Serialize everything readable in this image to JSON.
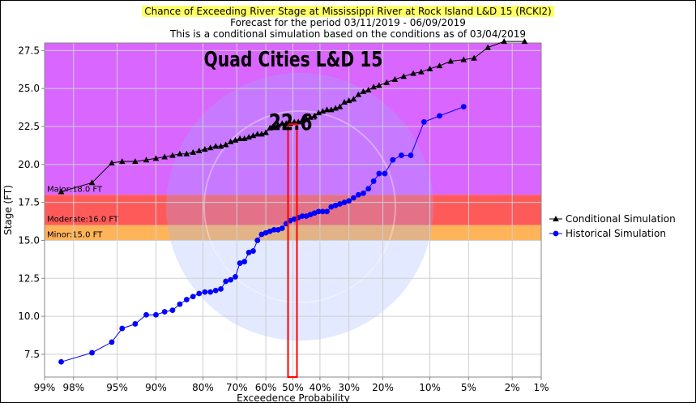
{
  "chart_data": {
    "type": "line",
    "title": "Chance of Exceeding River Stage at Mississippi River at Rock Island L&D 15 (RCKI2)",
    "subtitle": [
      "Forecast for the period 03/11/2019 - 06/09/2019",
      "This is a conditional simulation based on the conditions as of 03/04/2019"
    ],
    "xlabel": "Exceedence Probability",
    "ylabel": "Stage (FT)",
    "ylim": [
      6.0,
      28.0
    ],
    "x_tick_labels": [
      "99%",
      "98%",
      "95%",
      "90%",
      "80%",
      "70%",
      "60%",
      "50%",
      "40%",
      "30%",
      "20%",
      "10%",
      "5%",
      "2%",
      "1%"
    ],
    "y_ticks": [
      "7.5",
      "10.0",
      "12.5",
      "15.0",
      "17.5",
      "20.0",
      "22.5",
      "25.0",
      "27.5"
    ],
    "bands": [
      {
        "name": "Major",
        "label": "Major:18.0 FT",
        "from": 18.0,
        "to": 28.0,
        "color": "#d966ff"
      },
      {
        "name": "Moderate",
        "label": "Moderate:16.0 FT",
        "from": 16.0,
        "to": 18.0,
        "color": "#ff5a5a"
      },
      {
        "name": "Minor",
        "label": "Minor:15.0 FT",
        "from": 15.0,
        "to": 16.0,
        "color": "#ffb45a"
      }
    ],
    "annotation": {
      "title": "Quad Cities L&D 15",
      "value_label": "22.6'",
      "highlight_prob": 50,
      "highlight_stage": 22.6
    },
    "legend_position": "right",
    "grid": true,
    "series": [
      {
        "name": "Conditional Simulation",
        "marker": "triangle",
        "color": "#000000",
        "points": [
          [
            98.5,
            18.2
          ],
          [
            97,
            18.8
          ],
          [
            95.5,
            20.1
          ],
          [
            94.5,
            20.2
          ],
          [
            93,
            20.2
          ],
          [
            91.5,
            20.3
          ],
          [
            90,
            20.4
          ],
          [
            88.5,
            20.5
          ],
          [
            87,
            20.6
          ],
          [
            85.5,
            20.7
          ],
          [
            84,
            20.7
          ],
          [
            82.5,
            20.8
          ],
          [
            81,
            20.9
          ],
          [
            79.5,
            21.0
          ],
          [
            78,
            21.1
          ],
          [
            76.5,
            21.2
          ],
          [
            75,
            21.2
          ],
          [
            73.5,
            21.3
          ],
          [
            72,
            21.5
          ],
          [
            70.5,
            21.6
          ],
          [
            69,
            21.7
          ],
          [
            67.5,
            21.7
          ],
          [
            66,
            21.8
          ],
          [
            64.5,
            21.9
          ],
          [
            63,
            22.0
          ],
          [
            61.5,
            22.0
          ],
          [
            60,
            22.1
          ],
          [
            58.5,
            22.4
          ],
          [
            57,
            22.5
          ],
          [
            55.5,
            22.6
          ],
          [
            54,
            22.7
          ],
          [
            52.5,
            22.7
          ],
          [
            51,
            22.7
          ],
          [
            49.5,
            22.8
          ],
          [
            48,
            22.8
          ],
          [
            46.5,
            22.9
          ],
          [
            45,
            23.0
          ],
          [
            43.5,
            23.1
          ],
          [
            42,
            23.2
          ],
          [
            40.5,
            23.4
          ],
          [
            39,
            23.5
          ],
          [
            37.5,
            23.6
          ],
          [
            36,
            23.6
          ],
          [
            34.5,
            23.7
          ],
          [
            33,
            23.8
          ],
          [
            31.5,
            24.1
          ],
          [
            30,
            24.2
          ],
          [
            28.5,
            24.3
          ],
          [
            27,
            24.6
          ],
          [
            25.5,
            24.8
          ],
          [
            24,
            24.9
          ],
          [
            22.5,
            25.1
          ],
          [
            21,
            25.2
          ],
          [
            19,
            25.4
          ],
          [
            17,
            25.6
          ],
          [
            15,
            25.8
          ],
          [
            13,
            26.0
          ],
          [
            11.5,
            26.1
          ],
          [
            10,
            26.3
          ],
          [
            8.5,
            26.5
          ],
          [
            7,
            26.8
          ],
          [
            5.5,
            26.9
          ],
          [
            4.5,
            27.0
          ],
          [
            3.4,
            27.7
          ],
          [
            2.4,
            28.1
          ],
          [
            1.5,
            28.1
          ]
        ]
      },
      {
        "name": "Historical Simulation",
        "marker": "circle",
        "color": "#0000ff",
        "points": [
          [
            98.5,
            7.0
          ],
          [
            97,
            7.6
          ],
          [
            95.5,
            8.3
          ],
          [
            94.5,
            9.2
          ],
          [
            93,
            9.5
          ],
          [
            91.5,
            10.1
          ],
          [
            90,
            10.1
          ],
          [
            88.5,
            10.3
          ],
          [
            87,
            10.4
          ],
          [
            85.5,
            10.8
          ],
          [
            84,
            11.1
          ],
          [
            82.5,
            11.3
          ],
          [
            81,
            11.5
          ],
          [
            79.5,
            11.6
          ],
          [
            78,
            11.6
          ],
          [
            76.5,
            11.7
          ],
          [
            75,
            11.8
          ],
          [
            73.5,
            12.3
          ],
          [
            72,
            12.4
          ],
          [
            70.5,
            12.6
          ],
          [
            69,
            13.5
          ],
          [
            67.5,
            13.6
          ],
          [
            66,
            14.2
          ],
          [
            64.5,
            14.3
          ],
          [
            63,
            15.0
          ],
          [
            61.5,
            15.4
          ],
          [
            60,
            15.5
          ],
          [
            58.5,
            15.6
          ],
          [
            57,
            15.7
          ],
          [
            55.5,
            15.7
          ],
          [
            54,
            15.8
          ],
          [
            52.5,
            16.1
          ],
          [
            51,
            16.3
          ],
          [
            49.5,
            16.4
          ],
          [
            48,
            16.5
          ],
          [
            46.5,
            16.6
          ],
          [
            45,
            16.6
          ],
          [
            43.5,
            16.7
          ],
          [
            42,
            16.8
          ],
          [
            40.5,
            16.9
          ],
          [
            39,
            16.9
          ],
          [
            37.5,
            16.9
          ],
          [
            36,
            17.2
          ],
          [
            34.5,
            17.3
          ],
          [
            33,
            17.4
          ],
          [
            31.5,
            17.5
          ],
          [
            30,
            17.6
          ],
          [
            28.5,
            17.8
          ],
          [
            27,
            18.0
          ],
          [
            25.5,
            18.1
          ],
          [
            24,
            18.4
          ],
          [
            22.5,
            18.9
          ],
          [
            21,
            19.4
          ],
          [
            19.5,
            19.4
          ],
          [
            17.5,
            20.3
          ],
          [
            15.5,
            20.6
          ],
          [
            13.5,
            20.6
          ],
          [
            11,
            22.8
          ],
          [
            8.5,
            23.2
          ],
          [
            5.5,
            23.8
          ]
        ]
      }
    ]
  }
}
